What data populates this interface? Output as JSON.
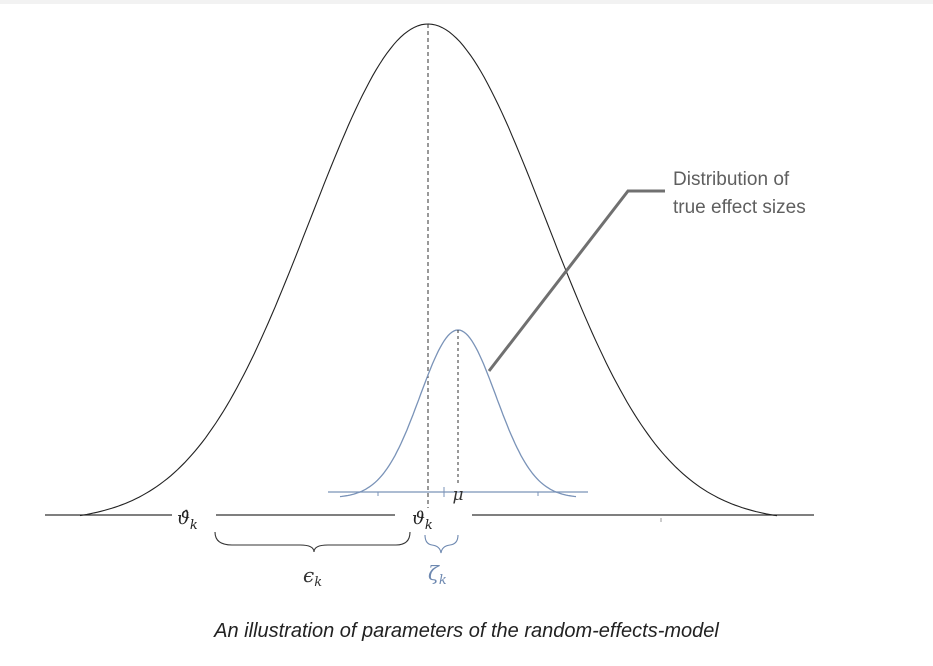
{
  "callout": {
    "line1": "Distribution of",
    "line2": "true effect sizes"
  },
  "labels": {
    "theta_hat_k": "ϑ̂k",
    "theta_k": "ϑk",
    "mu": "μ",
    "epsilon_k": "ϵk",
    "zeta_k": "ζk"
  },
  "caption": "An illustration of parameters of the random-effects-model",
  "colors": {
    "outer_curve": "#222222",
    "inner_curve": "#7a93b8",
    "zeta_label": "#6d88b0",
    "callout_line": "#707070",
    "callout_text": "#5f5f5f"
  }
}
